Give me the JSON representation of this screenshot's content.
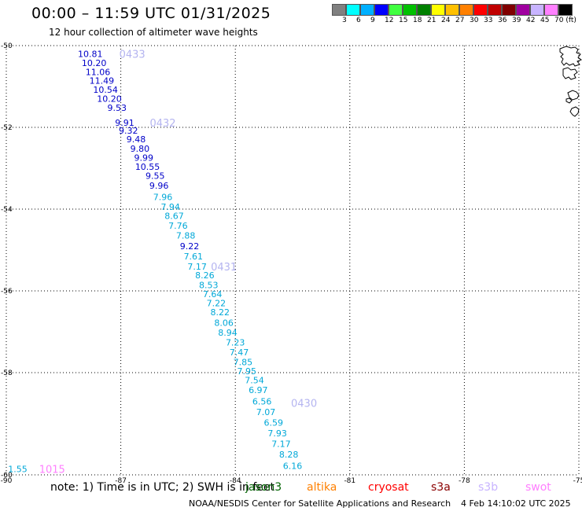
{
  "header": {
    "title": "00:00 – 11:59 UTC 01/31/2025",
    "subtitle": "12 hour collection of altimeter wave heights"
  },
  "colorscale": {
    "colors": [
      "#808080",
      "#00ffff",
      "#00b0ff",
      "#0000ff",
      "#40ff40",
      "#00c000",
      "#008000",
      "#ffff00",
      "#ffc000",
      "#ff8000",
      "#ff0000",
      "#c00000",
      "#800000",
      "#a000a0",
      "#c8b4ff",
      "#ff80ff",
      "#000000"
    ],
    "labels": [
      "3",
      "6",
      "9",
      "12",
      "15",
      "18",
      "21",
      "24",
      "27",
      "30",
      "33",
      "36",
      "39",
      "42",
      "45",
      "70 (ft)"
    ]
  },
  "chart_data": {
    "type": "scatter",
    "title": "00:00 – 11:59 UTC 01/31/2025",
    "subtitle": "12 hour collection of altimeter wave heights",
    "xlabel": "",
    "ylabel": "",
    "xlim": [
      -90,
      -75
    ],
    "ylim": [
      -60.5,
      -50
    ],
    "x_ticks": [
      "-90",
      "-87",
      "-84",
      "-81",
      "-78",
      "-75"
    ],
    "y_ticks": [
      "-50",
      "-52",
      "-54",
      "-56",
      "-58",
      "-60"
    ],
    "y_tick_values": [
      -50,
      -52,
      -54,
      -56,
      -58,
      -60.5
    ],
    "grid": true,
    "legend_position": "bottom",
    "series": [
      {
        "name": "jason3",
        "color": "#0000c8",
        "points": [
          {
            "lon": -87.8,
            "lat": -50.2,
            "label": "10.81"
          },
          {
            "lon": -87.7,
            "lat": -50.42,
            "label": "10.20"
          },
          {
            "lon": -87.6,
            "lat": -50.64,
            "label": "11.06"
          },
          {
            "lon": -87.5,
            "lat": -50.86,
            "label": "11.49"
          },
          {
            "lon": -87.4,
            "lat": -51.08,
            "label": "10.54"
          },
          {
            "lon": -87.3,
            "lat": -51.3,
            "label": "10.20"
          },
          {
            "lon": -87.1,
            "lat": -51.52,
            "label": "9.53"
          },
          {
            "lon": -86.9,
            "lat": -51.88,
            "label": "9.91"
          },
          {
            "lon": -86.8,
            "lat": -52.08,
            "label": "9.32"
          },
          {
            "lon": -86.6,
            "lat": -52.29,
            "label": "9.48"
          },
          {
            "lon": -86.5,
            "lat": -52.52,
            "label": "9.80"
          },
          {
            "lon": -86.4,
            "lat": -52.74,
            "label": "9.99"
          },
          {
            "lon": -86.3,
            "lat": -52.96,
            "label": "10.55"
          },
          {
            "lon": -86.1,
            "lat": -53.18,
            "label": "9.55"
          },
          {
            "lon": -86.0,
            "lat": -53.42,
            "label": "9.96"
          },
          {
            "lon": -85.2,
            "lat": -54.9,
            "label": "9.22"
          }
        ]
      },
      {
        "name": "",
        "color": "#00a8d8",
        "points": [
          {
            "lon": -85.9,
            "lat": -53.7,
            "label": "7.96"
          },
          {
            "lon": -85.7,
            "lat": -53.94,
            "label": "7.94"
          },
          {
            "lon": -85.6,
            "lat": -54.16,
            "label": "8.67"
          },
          {
            "lon": -85.5,
            "lat": -54.4,
            "label": "7.76"
          },
          {
            "lon": -85.3,
            "lat": -54.64,
            "label": "7.88"
          },
          {
            "lon": -85.1,
            "lat": -55.15,
            "label": "7.61"
          },
          {
            "lon": -85.0,
            "lat": -55.4,
            "label": "7.17"
          },
          {
            "lon": -84.8,
            "lat": -55.62,
            "label": "8.26"
          },
          {
            "lon": -84.7,
            "lat": -55.86,
            "label": "8.53"
          },
          {
            "lon": -84.6,
            "lat": -56.08,
            "label": "7.64"
          },
          {
            "lon": -84.5,
            "lat": -56.3,
            "label": "7.22"
          },
          {
            "lon": -84.4,
            "lat": -56.52,
            "label": "8.22"
          },
          {
            "lon": -84.3,
            "lat": -56.78,
            "label": "8.06"
          },
          {
            "lon": -84.2,
            "lat": -57.02,
            "label": "8.94"
          },
          {
            "lon": -84.0,
            "lat": -57.26,
            "label": "7.23"
          },
          {
            "lon": -83.9,
            "lat": -57.5,
            "label": "7.47"
          },
          {
            "lon": -83.8,
            "lat": -57.74,
            "label": "7.85"
          },
          {
            "lon": -83.7,
            "lat": -57.96,
            "label": "7.95"
          },
          {
            "lon": -83.5,
            "lat": -58.18,
            "label": "7.54"
          },
          {
            "lon": -83.4,
            "lat": -58.42,
            "label": "6.97"
          },
          {
            "lon": -83.3,
            "lat": -58.7,
            "label": "6.56"
          },
          {
            "lon": -83.2,
            "lat": -58.96,
            "label": "7.07"
          },
          {
            "lon": -83.0,
            "lat": -59.22,
            "label": "6.59"
          },
          {
            "lon": -82.9,
            "lat": -59.48,
            "label": "7.93"
          },
          {
            "lon": -82.8,
            "lat": -59.74,
            "label": "7.17"
          },
          {
            "lon": -82.6,
            "lat": -60.0,
            "label": "8.28"
          },
          {
            "lon": -82.5,
            "lat": -60.28,
            "label": "6.16"
          },
          {
            "lon": -89.7,
            "lat": -60.36,
            "label": "1.55"
          }
        ]
      }
    ],
    "time_labels": [
      {
        "lon": -86.7,
        "lat": -50.2,
        "label": "0433",
        "color": "#b4b4f0"
      },
      {
        "lon": -85.9,
        "lat": -51.88,
        "label": "0432",
        "color": "#b4b4f0"
      },
      {
        "lon": -84.3,
        "lat": -55.4,
        "label": "0431",
        "color": "#b4b4f0"
      },
      {
        "lon": -82.2,
        "lat": -58.74,
        "label": "0430",
        "color": "#b4b4f0"
      },
      {
        "lon": -88.8,
        "lat": -60.36,
        "label": "1015",
        "color": "#ff80ff"
      }
    ]
  },
  "footer": {
    "note": "note: 1) Time is in UTC; 2) SWH is in feet",
    "missions": [
      {
        "name": "jason3",
        "color": "#006400"
      },
      {
        "name": "altika",
        "color": "#ff8000"
      },
      {
        "name": "cryosat",
        "color": "#ff0000"
      },
      {
        "name": "s3a",
        "color": "#8b0000"
      },
      {
        "name": "s3b",
        "color": "#c8b4ff"
      },
      {
        "name": "swot",
        "color": "#ff80ff"
      }
    ],
    "org": "NOAA/NESDIS Center for Satellite Applications and Research",
    "date": "4 Feb 14:10:02 UTC 2025"
  }
}
